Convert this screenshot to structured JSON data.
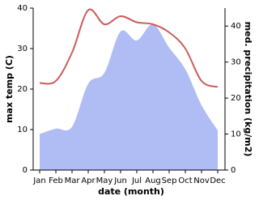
{
  "chart_data": {
    "type": "line",
    "categories": [
      "Jan",
      "Feb",
      "Mar",
      "Apr",
      "May",
      "Jun",
      "Jul",
      "Aug",
      "Sep",
      "Oct",
      "Nov",
      "Dec"
    ],
    "x_label": "date (month)",
    "y_label": "max temp (C)",
    "y2_label": "med. precipitation (kg/m2)",
    "series": [
      {
        "name": "max temp",
        "type": "line",
        "color": "#cd5c5c",
        "values": [
          21.5,
          22,
          29,
          39.5,
          36,
          38,
          36.5,
          36,
          34,
          30,
          22,
          20.5
        ]
      },
      {
        "name": "med. precipitation",
        "type": "area",
        "axis": "y2",
        "color": "#b0bcf4",
        "values": [
          10,
          11.5,
          12,
          24,
          27,
          38.5,
          36,
          40.5,
          34,
          28,
          18,
          11
        ]
      }
    ],
    "ylim": [
      0,
      40
    ],
    "yticks": [
      0,
      10,
      20,
      30,
      40
    ],
    "y2lim": [
      0,
      45
    ],
    "y2ticks": [
      0,
      10,
      20,
      30,
      40
    ]
  }
}
